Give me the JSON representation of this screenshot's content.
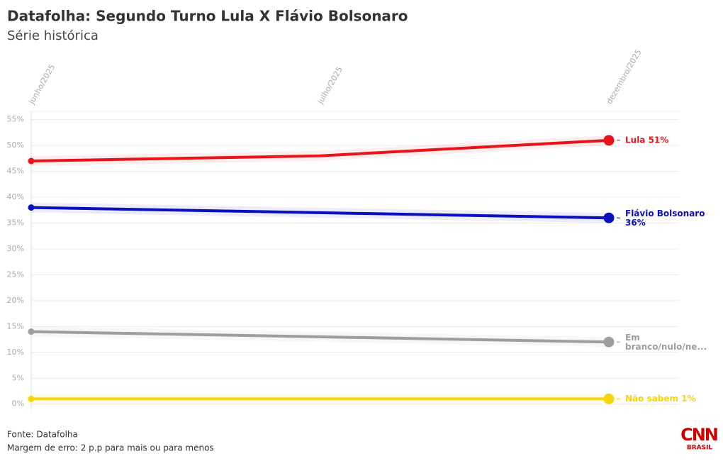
{
  "chart_data": {
    "type": "line",
    "title": "Datafolha: Segundo Turno Lula X Flávio Bolsonaro",
    "subtitle": "Série histórica",
    "categories": [
      "junho/2025",
      "julho/2025",
      "dezembro/2025"
    ],
    "series": [
      {
        "label": "Lula 51%",
        "color": "#e8141b",
        "values": [
          47,
          48,
          51
        ]
      },
      {
        "label": "Flávio Bolsonaro 36%",
        "color": "#0a0fbf",
        "values": [
          38,
          37,
          36
        ]
      },
      {
        "label": "Em branco/nulo/ne...",
        "color": "#9e9e9e",
        "values": [
          14,
          13,
          12
        ]
      },
      {
        "label": "Não sabem 1%",
        "color": "#f7d40c",
        "values": [
          1,
          1,
          1
        ]
      }
    ],
    "ylim": [
      -1,
      56.6
    ],
    "yticks": [
      {
        "value": 0,
        "label": "0%"
      },
      {
        "value": 5,
        "label": "5%"
      },
      {
        "value": 10,
        "label": "10%"
      },
      {
        "value": 15,
        "label": "15%"
      },
      {
        "value": 20,
        "label": "20%"
      },
      {
        "value": 25,
        "label": "25%"
      },
      {
        "value": 30,
        "label": "30%"
      },
      {
        "value": 35,
        "label": "35%"
      },
      {
        "value": 40,
        "label": "40%"
      },
      {
        "value": 45,
        "label": "45%"
      },
      {
        "value": 50,
        "label": "50%"
      },
      {
        "value": 55,
        "label": "55%"
      }
    ],
    "grid": true,
    "source": "Fonte: Datafolha",
    "note": "Margem de erro: 2 p.p para mais ou para menos",
    "logo": {
      "brand": "CNN",
      "sub": "BRASIL"
    }
  }
}
